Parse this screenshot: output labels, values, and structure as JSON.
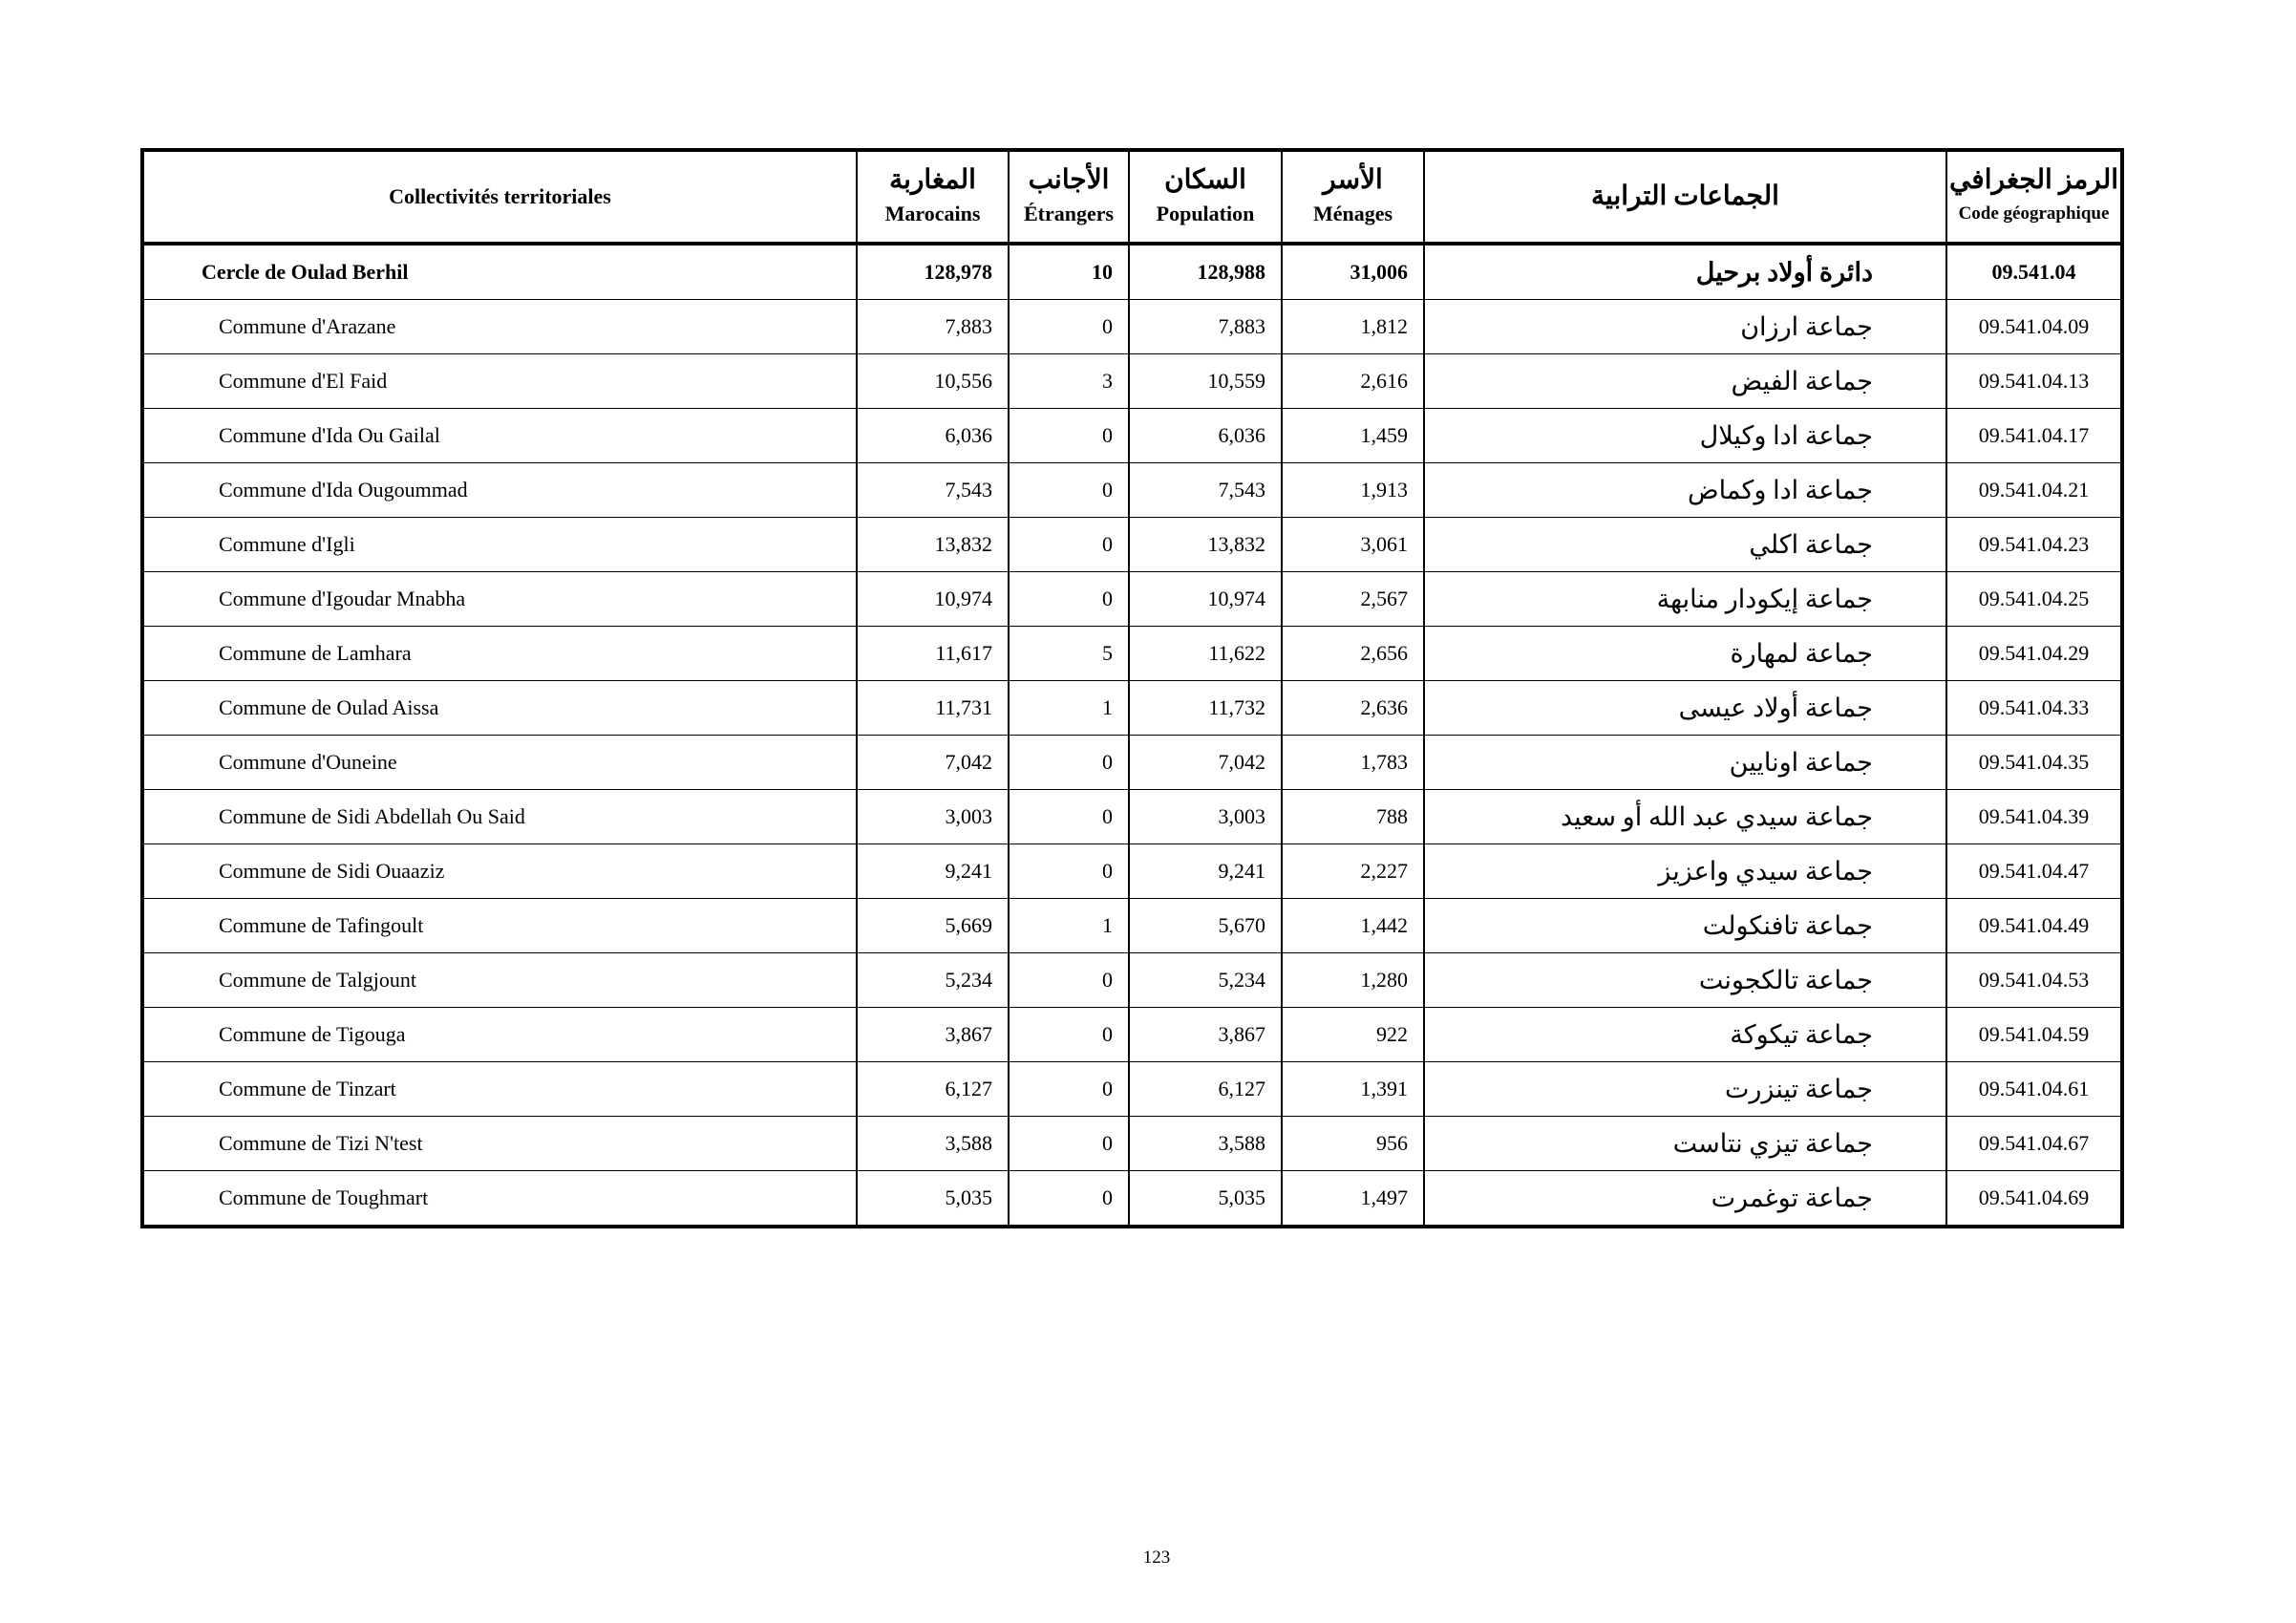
{
  "header": {
    "columns": [
      {
        "fr": "Collectivités territoriales"
      },
      {
        "ar": "المغاربة",
        "fr": "Marocains"
      },
      {
        "ar": "الأجانب",
        "fr": "Étrangers"
      },
      {
        "ar": "السكان",
        "fr": "Population"
      },
      {
        "ar": "الأسر",
        "fr": "Ménages"
      },
      {
        "ar": "الجماعات الترابية"
      },
      {
        "ar": "الرمز الجغرافي",
        "fr": "Code géographique"
      }
    ]
  },
  "table": {
    "rows": [
      [
        "Cercle de Oulad Berhil",
        "128,978",
        "10",
        "128,988",
        "31,006",
        "دائرة أولاد برحيل",
        "09.541.04"
      ],
      [
        "Commune d'Arazane",
        "7,883",
        "0",
        "7,883",
        "1,812",
        "جماعة ارزان",
        "09.541.04.09"
      ],
      [
        "Commune d'El Faid",
        "10,556",
        "3",
        "10,559",
        "2,616",
        "جماعة الفيض",
        "09.541.04.13"
      ],
      [
        "Commune d'Ida Ou Gailal",
        "6,036",
        "0",
        "6,036",
        "1,459",
        "جماعة ادا وكيلال",
        "09.541.04.17"
      ],
      [
        "Commune d'Ida Ougoummad",
        "7,543",
        "0",
        "7,543",
        "1,913",
        "جماعة ادا وكماض",
        "09.541.04.21"
      ],
      [
        "Commune d'Igli",
        "13,832",
        "0",
        "13,832",
        "3,061",
        "جماعة اكلي",
        "09.541.04.23"
      ],
      [
        "Commune d'Igoudar Mnabha",
        "10,974",
        "0",
        "10,974",
        "2,567",
        "جماعة إيكودار منابهة",
        "09.541.04.25"
      ],
      [
        "Commune de Lamhara",
        "11,617",
        "5",
        "11,622",
        "2,656",
        "جماعة لمهارة",
        "09.541.04.29"
      ],
      [
        "Commune de Oulad Aissa",
        "11,731",
        "1",
        "11,732",
        "2,636",
        "جماعة أولاد عيسى",
        "09.541.04.33"
      ],
      [
        "Commune d'Ouneine",
        "7,042",
        "0",
        "7,042",
        "1,783",
        "جماعة اونايين",
        "09.541.04.35"
      ],
      [
        "Commune de Sidi Abdellah Ou Said",
        "3,003",
        "0",
        "3,003",
        "788",
        "جماعة سيدي عبد الله أو سعيد",
        "09.541.04.39"
      ],
      [
        "Commune de Sidi Ouaaziz",
        "9,241",
        "0",
        "9,241",
        "2,227",
        "جماعة سيدي واعزيز",
        "09.541.04.47"
      ],
      [
        "Commune de Tafingoult",
        "5,669",
        "1",
        "5,670",
        "1,442",
        "جماعة تافنكولت",
        "09.541.04.49"
      ],
      [
        "Commune de Talgjount",
        "5,234",
        "0",
        "5,234",
        "1,280",
        "جماعة تالكجونت",
        "09.541.04.53"
      ],
      [
        "Commune de Tigouga",
        "3,867",
        "0",
        "3,867",
        "922",
        "جماعة تيكوكة",
        "09.541.04.59"
      ],
      [
        "Commune de Tinzart",
        "6,127",
        "0",
        "6,127",
        "1,391",
        "جماعة تينزرت",
        "09.541.04.61"
      ],
      [
        "Commune de Tizi N'test",
        "3,588",
        "0",
        "3,588",
        "956",
        "جماعة تيزي نتاست",
        "09.541.04.67"
      ],
      [
        "Commune de Toughmart",
        "5,035",
        "0",
        "5,035",
        "1,497",
        "جماعة توغمرت",
        "09.541.04.69"
      ]
    ]
  },
  "footer": {
    "page_number": "123"
  }
}
